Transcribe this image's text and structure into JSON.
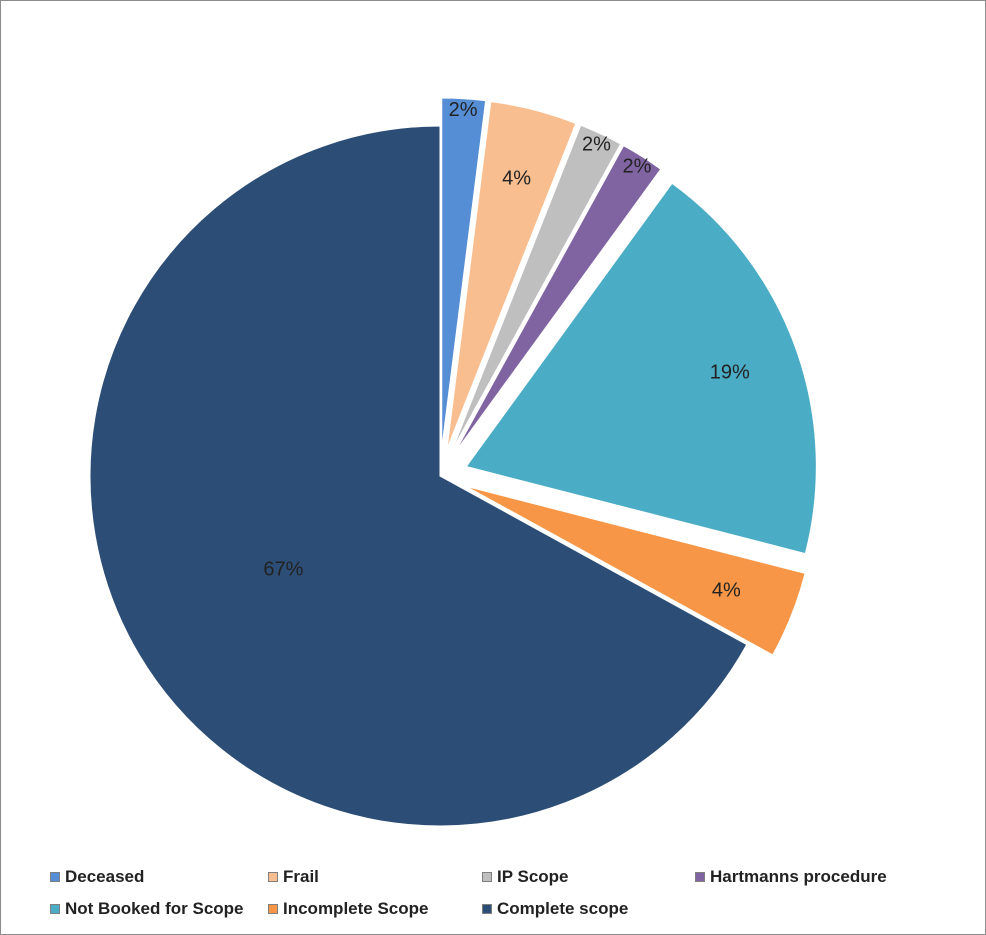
{
  "chart_data": {
    "type": "pie",
    "title": "",
    "categories": [
      "Deceased",
      "Frail",
      "IP Scope",
      "Hartmanns procedure",
      "Not Booked for Scope",
      "Incomplete Scope",
      "Complete scope"
    ],
    "values": [
      2,
      4,
      2,
      2,
      19,
      4,
      67
    ],
    "labels": [
      "2%",
      "4%",
      "2%",
      "2%",
      "19%",
      "4%",
      "67%"
    ],
    "colors": [
      "#558ed5",
      "#f9be8f",
      "#bfbfbf",
      "#8064a2",
      "#4bacc6",
      "#f79646",
      "#2c4d75"
    ],
    "exploded": [
      true,
      true,
      true,
      true,
      true,
      true,
      false
    ],
    "legend_position": "bottom"
  }
}
